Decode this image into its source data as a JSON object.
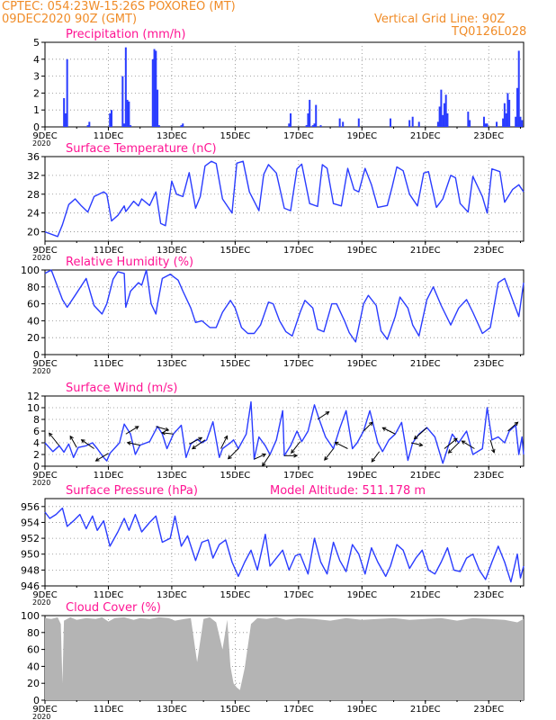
{
  "header": {
    "line1": "CPTEC:   054:23W-15:26S  POXOREO (MT)",
    "line2": "09DEC2020 90Z (GMT)",
    "grid_note": "Vertical Grid Line: 90Z",
    "run_id": "TQ0126L028"
  },
  "colors": {
    "header": "#f08c28",
    "title": "#ff1493",
    "series": "#2a3cff",
    "cloud": "#b4b4b4",
    "axis": "#000000",
    "grid": "#888888"
  },
  "x_axis": {
    "labels": [
      "9DEC",
      "11DEC",
      "13DEC",
      "15DEC",
      "17DEC",
      "19DEC",
      "21DEC",
      "23DEC"
    ],
    "days": [
      9,
      11,
      13,
      15,
      17,
      19,
      21,
      23
    ],
    "range_days": [
      9,
      24.1
    ],
    "year_label": "2020"
  },
  "chart_data": [
    {
      "type": "bar",
      "title": "Precipitation (mm/h)",
      "ylim": [
        0,
        5
      ],
      "yticks": [
        "0",
        "1",
        "2",
        "3",
        "4",
        "5"
      ],
      "x_days": [
        9.6,
        9.65,
        9.7,
        10.35,
        10.4,
        11.05,
        11.1,
        11.45,
        11.5,
        11.55,
        11.6,
        11.65,
        11.7,
        12.4,
        12.45,
        12.5,
        12.55,
        12.6,
        13.3,
        13.35,
        16.7,
        16.75,
        17.25,
        17.3,
        17.35,
        17.45,
        17.5,
        17.55,
        17.7,
        18.3,
        18.4,
        18.9,
        19.9,
        20.5,
        20.6,
        20.8,
        21.4,
        21.45,
        21.5,
        21.55,
        21.6,
        21.65,
        21.7,
        22.35,
        22.4,
        22.85,
        22.9,
        22.95,
        23.25,
        23.45,
        23.5,
        23.55,
        23.6,
        23.65,
        23.85,
        23.9,
        23.95,
        24.0,
        24.05
      ],
      "values": [
        1.7,
        0.8,
        4.0,
        0.1,
        0.3,
        0.8,
        1.0,
        3.0,
        0.2,
        4.7,
        1.6,
        1.5,
        0.1,
        4.0,
        4.6,
        4.5,
        2.2,
        0.1,
        0.1,
        0.2,
        0.2,
        0.8,
        0.1,
        0.8,
        1.6,
        0.1,
        0.2,
        1.3,
        0.1,
        0.5,
        0.3,
        0.5,
        0.5,
        0.4,
        0.6,
        0.3,
        0.3,
        1.2,
        2.2,
        0.7,
        1.4,
        1.9,
        0.8,
        0.9,
        0.4,
        0.6,
        0.2,
        0.2,
        0.3,
        0.5,
        1.4,
        0.8,
        2.0,
        1.6,
        0.6,
        2.3,
        4.5,
        0.6,
        0.4
      ]
    },
    {
      "type": "line",
      "title": "Surface Temperature (nC)",
      "ylim": [
        18,
        36
      ],
      "yticks": [
        "20",
        "24",
        "28",
        "32",
        "36"
      ],
      "x_days": [
        9.0,
        9.4,
        9.55,
        9.75,
        9.95,
        10.15,
        10.35,
        10.55,
        10.85,
        10.95,
        11.1,
        11.3,
        11.5,
        11.55,
        11.8,
        11.95,
        12.05,
        12.3,
        12.5,
        12.65,
        12.8,
        13.0,
        13.15,
        13.35,
        13.55,
        13.75,
        13.9,
        14.05,
        14.25,
        14.4,
        14.6,
        14.9,
        15.05,
        15.25,
        15.45,
        15.75,
        15.9,
        16.05,
        16.3,
        16.55,
        16.75,
        16.95,
        17.1,
        17.35,
        17.6,
        17.75,
        17.9,
        18.1,
        18.35,
        18.55,
        18.75,
        18.9,
        19.1,
        19.3,
        19.5,
        19.8,
        19.95,
        20.1,
        20.3,
        20.5,
        20.75,
        20.95,
        21.1,
        21.35,
        21.55,
        21.8,
        21.95,
        22.1,
        22.35,
        22.5,
        22.8,
        22.95,
        23.1,
        23.35,
        23.5,
        23.75,
        23.95,
        24.1
      ],
      "values": [
        20.0,
        19.0,
        21.5,
        25.8,
        27.0,
        25.5,
        24.2,
        27.5,
        28.5,
        28.0,
        22.3,
        23.5,
        25.5,
        24.3,
        26.5,
        25.5,
        27.0,
        25.6,
        28.5,
        21.8,
        21.3,
        30.8,
        28.0,
        27.5,
        32.6,
        25.0,
        27.5,
        34.0,
        35.0,
        34.5,
        27.0,
        24.0,
        34.6,
        35.0,
        28.5,
        24.5,
        32.2,
        34.3,
        32.5,
        25.0,
        24.5,
        33.4,
        34.4,
        26.0,
        25.4,
        34.3,
        33.5,
        26.0,
        25.5,
        33.5,
        29.0,
        28.5,
        33.5,
        30.0,
        25.2,
        25.6,
        29.5,
        33.8,
        33.0,
        28.0,
        25.5,
        32.5,
        32.8,
        25.2,
        27.0,
        32.0,
        31.5,
        26.0,
        24.2,
        31.8,
        27.5,
        24.0,
        33.4,
        32.8,
        26.3,
        29.0,
        30.0,
        28.5
      ]
    },
    {
      "type": "line",
      "title": "Relative Humidity (%)",
      "ylim": [
        0,
        100
      ],
      "yticks": [
        "0",
        "20",
        "40",
        "60",
        "80",
        "100"
      ],
      "x_days": [
        9.0,
        9.2,
        9.55,
        9.7,
        9.95,
        10.3,
        10.55,
        10.8,
        10.95,
        11.15,
        11.3,
        11.5,
        11.55,
        11.7,
        11.95,
        12.05,
        12.2,
        12.35,
        12.5,
        12.55,
        12.7,
        12.95,
        13.2,
        13.35,
        13.6,
        13.75,
        13.95,
        14.2,
        14.4,
        14.6,
        14.85,
        15.0,
        15.2,
        15.4,
        15.6,
        15.8,
        16.05,
        16.2,
        16.4,
        16.6,
        16.8,
        17.05,
        17.2,
        17.45,
        17.6,
        17.8,
        18.05,
        18.2,
        18.45,
        18.6,
        18.8,
        19.05,
        19.2,
        19.45,
        19.6,
        19.8,
        20.05,
        20.2,
        20.45,
        20.6,
        20.8,
        21.05,
        21.25,
        21.5,
        21.8,
        22.05,
        22.3,
        22.5,
        22.8,
        23.05,
        23.3,
        23.5,
        23.8,
        23.95,
        24.1
      ],
      "values": [
        96,
        100,
        65,
        56,
        70,
        90,
        58,
        48,
        60,
        89,
        98,
        96,
        56,
        75,
        85,
        82,
        100,
        60,
        48,
        60,
        90,
        95,
        88,
        75,
        55,
        38,
        40,
        32,
        32,
        50,
        64,
        55,
        32,
        25,
        25,
        35,
        62,
        60,
        40,
        27,
        22,
        50,
        64,
        55,
        30,
        27,
        60,
        60,
        40,
        26,
        15,
        60,
        70,
        58,
        28,
        18,
        45,
        68,
        55,
        35,
        22,
        65,
        80,
        58,
        35,
        55,
        65,
        50,
        25,
        32,
        85,
        90,
        60,
        45,
        85
      ]
    },
    {
      "type": "line",
      "title": "Surface Wind (m/s)",
      "ylim": [
        0,
        12
      ],
      "yticks": [
        "0",
        "2",
        "4",
        "6",
        "8",
        "10",
        "12"
      ],
      "x_days": [
        9.0,
        9.25,
        9.45,
        9.6,
        9.75,
        9.9,
        10.05,
        10.3,
        10.5,
        10.65,
        10.85,
        10.95,
        11.05,
        11.35,
        11.5,
        11.7,
        11.85,
        12.0,
        12.3,
        12.55,
        12.7,
        12.85,
        13.05,
        13.3,
        13.45,
        13.6,
        13.8,
        13.95,
        14.1,
        14.3,
        14.5,
        14.6,
        14.85,
        14.95,
        15.1,
        15.35,
        15.5,
        15.6,
        15.75,
        15.95,
        16.1,
        16.3,
        16.5,
        16.55,
        16.75,
        16.95,
        17.1,
        17.3,
        17.5,
        17.65,
        17.85,
        18.1,
        18.3,
        18.5,
        18.7,
        18.85,
        19.05,
        19.25,
        19.5,
        19.65,
        19.85,
        20.05,
        20.25,
        20.45,
        20.6,
        20.8,
        21.05,
        21.3,
        21.55,
        21.7,
        21.85,
        22.05,
        22.3,
        22.5,
        22.8,
        22.95,
        23.1,
        23.3,
        23.5,
        23.65,
        23.85,
        23.95,
        24.05,
        24.1
      ],
      "values": [
        4.0,
        2.5,
        3.5,
        2.4,
        3.8,
        1.5,
        3.2,
        3.5,
        4.0,
        3.0,
        1.5,
        0.9,
        2.2,
        4.0,
        7.2,
        5.5,
        2.0,
        3.6,
        4.2,
        6.8,
        5.5,
        3.0,
        5.5,
        7.0,
        1.5,
        3.8,
        4.6,
        4.0,
        4.5,
        7.6,
        1.5,
        3.0,
        4.0,
        4.5,
        3.0,
        5.5,
        11.0,
        1.2,
        5.0,
        3.5,
        2.0,
        4.5,
        9.5,
        1.8,
        3.5,
        6.0,
        4.2,
        6.0,
        10.5,
        8.0,
        5.0,
        3.0,
        6.5,
        9.5,
        3.0,
        4.0,
        6.0,
        9.5,
        4.0,
        2.5,
        4.5,
        5.5,
        7.5,
        1.0,
        4.0,
        5.5,
        6.6,
        5.0,
        0.5,
        3.0,
        5.5,
        4.0,
        6.0,
        2.0,
        3.0,
        10.0,
        4.5,
        5.0,
        4.0,
        6.0,
        7.0,
        2.0,
        5.0,
        2.0
      ],
      "vectors": [
        {
          "day": 9.45,
          "u": -0.8,
          "v": 1.0
        },
        {
          "day": 10.0,
          "u": -0.5,
          "v": 0.9
        },
        {
          "day": 10.55,
          "u": -1.0,
          "v": 0.7
        },
        {
          "day": 11.0,
          "u": -1.0,
          "v": -0.6
        },
        {
          "day": 11.55,
          "u": 1.0,
          "v": 0.6
        },
        {
          "day": 12.0,
          "u": -1.0,
          "v": 0.2
        },
        {
          "day": 12.5,
          "u": 1.0,
          "v": -0.3
        },
        {
          "day": 13.05,
          "u": -0.9,
          "v": 0.1
        },
        {
          "day": 13.55,
          "u": 1.0,
          "v": 0.5
        },
        {
          "day": 14.05,
          "u": -1.0,
          "v": -0.7
        },
        {
          "day": 14.55,
          "u": 0.5,
          "v": 1.0
        },
        {
          "day": 15.1,
          "u": -0.8,
          "v": -0.8
        },
        {
          "day": 15.6,
          "u": 0.9,
          "v": 0.4
        },
        {
          "day": 16.1,
          "u": -0.6,
          "v": -0.9
        },
        {
          "day": 16.55,
          "u": 1.0,
          "v": 0.0
        },
        {
          "day": 17.05,
          "u": -0.7,
          "v": -0.9
        },
        {
          "day": 17.6,
          "u": 0.9,
          "v": 0.6
        },
        {
          "day": 18.1,
          "u": -0.7,
          "v": -0.9
        },
        {
          "day": 18.55,
          "u": -1.0,
          "v": 0.5
        },
        {
          "day": 19.05,
          "u": 0.7,
          "v": 0.7
        },
        {
          "day": 19.55,
          "u": -0.6,
          "v": -0.8
        },
        {
          "day": 20.05,
          "u": -1.0,
          "v": 0.5
        },
        {
          "day": 20.55,
          "u": 0.9,
          "v": -0.2
        },
        {
          "day": 21.05,
          "u": -1.0,
          "v": -0.9
        },
        {
          "day": 21.6,
          "u": 1.0,
          "v": 0.8
        },
        {
          "day": 22.05,
          "u": -0.8,
          "v": -0.8
        },
        {
          "day": 22.55,
          "u": -1.0,
          "v": 0.6
        },
        {
          "day": 23.05,
          "u": 0.3,
          "v": -1.0
        },
        {
          "day": 23.6,
          "u": 0.8,
          "v": 0.7
        }
      ]
    },
    {
      "type": "line",
      "title": "Surface Pressure (hPa)",
      "subtitle": "Model Altitude: 511.178  m",
      "ylim": [
        946,
        957
      ],
      "yticks": [
        "946",
        "948",
        "950",
        "952",
        "954",
        "956"
      ],
      "x_days": [
        9.0,
        9.15,
        9.35,
        9.55,
        9.7,
        9.9,
        10.1,
        10.3,
        10.5,
        10.65,
        10.85,
        11.05,
        11.3,
        11.5,
        11.65,
        11.85,
        12.05,
        12.3,
        12.5,
        12.7,
        12.95,
        13.1,
        13.3,
        13.5,
        13.75,
        13.95,
        14.15,
        14.3,
        14.5,
        14.7,
        14.9,
        15.1,
        15.3,
        15.5,
        15.7,
        15.95,
        16.1,
        16.3,
        16.5,
        16.7,
        16.9,
        17.05,
        17.3,
        17.5,
        17.7,
        17.9,
        18.1,
        18.3,
        18.5,
        18.7,
        18.9,
        19.1,
        19.3,
        19.5,
        19.75,
        19.9,
        20.1,
        20.3,
        20.5,
        20.7,
        20.9,
        21.1,
        21.3,
        21.5,
        21.7,
        21.9,
        22.1,
        22.3,
        22.5,
        22.7,
        22.9,
        23.1,
        23.3,
        23.5,
        23.7,
        23.9,
        24.0,
        24.1
      ],
      "values": [
        955.3,
        954.5,
        955.0,
        955.8,
        953.5,
        954.2,
        955.0,
        953.2,
        954.8,
        953.0,
        954.2,
        951.0,
        952.8,
        954.5,
        953.0,
        955.0,
        952.8,
        954.0,
        954.8,
        951.5,
        952.0,
        954.8,
        951.0,
        952.3,
        949.2,
        951.5,
        951.8,
        949.5,
        951.2,
        951.8,
        949.0,
        947.2,
        949.0,
        950.5,
        948.0,
        952.5,
        948.5,
        949.5,
        950.5,
        948.0,
        949.8,
        950.0,
        947.5,
        952.0,
        949.0,
        947.5,
        951.5,
        949.2,
        947.8,
        951.2,
        950.0,
        947.5,
        950.8,
        949.0,
        947.2,
        948.5,
        951.2,
        950.5,
        948.2,
        949.5,
        950.5,
        948.0,
        947.5,
        949.0,
        950.8,
        948.0,
        947.8,
        949.5,
        950.0,
        948.0,
        946.8,
        949.0,
        951.0,
        949.0,
        946.5,
        950.0,
        947.0,
        948.5
      ]
    },
    {
      "type": "area",
      "title": "Cloud Cover (%)",
      "ylim": [
        0,
        100
      ],
      "yticks": [
        "0",
        "20",
        "40",
        "60",
        "80",
        "100"
      ],
      "x_days": [
        9.0,
        9.2,
        9.4,
        9.5,
        9.55,
        9.6,
        9.8,
        10.0,
        10.3,
        10.6,
        10.8,
        11.0,
        11.2,
        11.5,
        11.8,
        12.0,
        12.3,
        12.6,
        12.9,
        13.1,
        13.4,
        13.6,
        13.8,
        14.0,
        14.2,
        14.4,
        14.6,
        14.75,
        14.85,
        14.95,
        15.05,
        15.15,
        15.3,
        15.5,
        15.7,
        16.0,
        16.3,
        16.6,
        17.0,
        17.5,
        18.0,
        18.5,
        19.0,
        19.5,
        20.0,
        20.5,
        21.0,
        21.5,
        22.0,
        22.5,
        23.0,
        23.5,
        23.9,
        24.1
      ],
      "values": [
        97,
        96,
        98,
        90,
        20,
        94,
        98,
        95,
        97,
        96,
        98,
        93,
        97,
        98,
        95,
        97,
        96,
        98,
        97,
        94,
        96,
        97,
        45,
        96,
        98,
        92,
        60,
        95,
        40,
        20,
        15,
        12,
        38,
        90,
        97,
        96,
        98,
        95,
        97,
        96,
        94,
        97,
        95,
        96,
        97,
        95,
        96,
        97,
        94,
        97,
        96,
        95,
        92,
        96
      ]
    }
  ]
}
